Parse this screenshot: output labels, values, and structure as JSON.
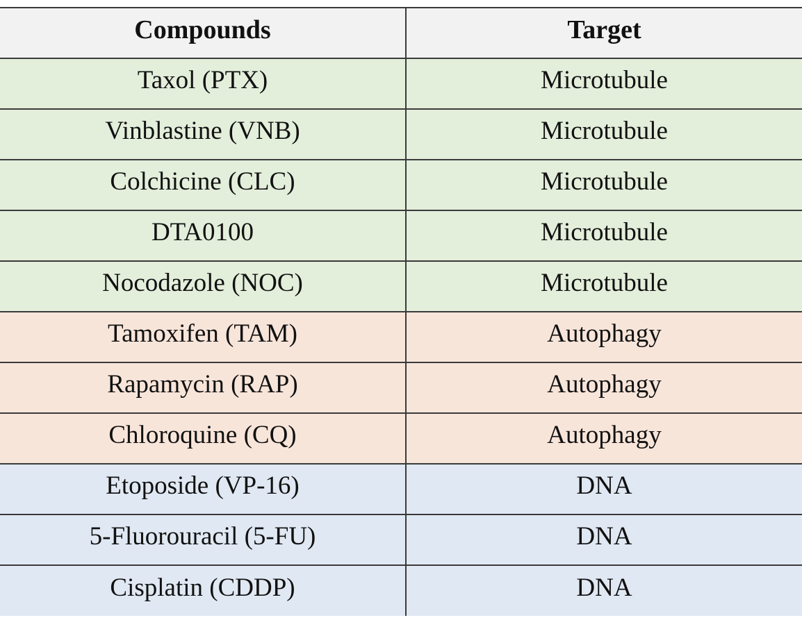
{
  "table": {
    "headers": [
      "Compounds",
      "Target"
    ],
    "row_colors": {
      "Microtubule": "#e3eedb",
      "Autophagy": "#f8e5da",
      "DNA": "#e0e8f3"
    },
    "rows": [
      {
        "compound": "Taxol (PTX)",
        "target": "Microtubule"
      },
      {
        "compound": "Vinblastine (VNB)",
        "target": "Microtubule"
      },
      {
        "compound": "Colchicine (CLC)",
        "target": "Microtubule"
      },
      {
        "compound": "DTA0100",
        "target": "Microtubule"
      },
      {
        "compound": "Nocodazole (NOC)",
        "target": "Microtubule"
      },
      {
        "compound": "Tamoxifen (TAM)",
        "target": "Autophagy"
      },
      {
        "compound": "Rapamycin (RAP)",
        "target": "Autophagy"
      },
      {
        "compound": "Chloroquine (CQ)",
        "target": "Autophagy"
      },
      {
        "compound": "Etoposide (VP-16)",
        "target": "DNA"
      },
      {
        "compound": "5-Fluorouracil (5-FU)",
        "target": "DNA"
      },
      {
        "compound": "Cisplatin (CDDP)",
        "target": "DNA"
      }
    ]
  }
}
